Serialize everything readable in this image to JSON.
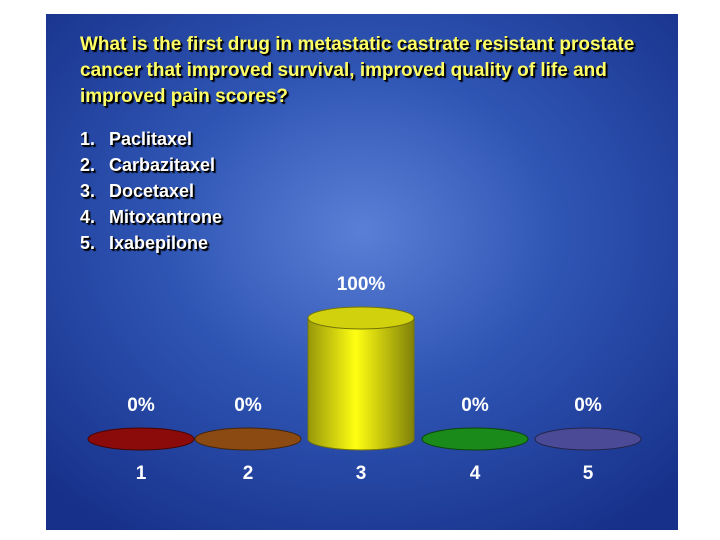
{
  "question": "What is the first drug in metastatic castrate resistant prostate cancer that improved survival, improved quality of life and improved pain scores?",
  "options": [
    {
      "number": "1.",
      "label": "Paclitaxel"
    },
    {
      "number": "2.",
      "label": "Carbazitaxel"
    },
    {
      "number": "3.",
      "label": "Docetaxel"
    },
    {
      "number": "4.",
      "label": "Mitoxantrone"
    },
    {
      "number": "5.",
      "label": "Ixabepilone"
    }
  ],
  "colors": {
    "background": "#2f55b4",
    "question_text": "#ffff66",
    "option_text": "#ffffff"
  },
  "chart_data": {
    "type": "bar",
    "categories": [
      "1",
      "2",
      "3",
      "4",
      "5"
    ],
    "values": [
      0,
      0,
      100,
      0,
      0
    ],
    "value_labels": [
      "0%",
      "0%",
      "100%",
      "0%",
      "0%"
    ],
    "ylim": [
      0,
      100
    ],
    "unit": "%",
    "grid": false,
    "colors": [
      "#8b0a0a",
      "#8a4a12",
      "#e8e810",
      "#1a8a1a",
      "#4a4a96"
    ]
  }
}
